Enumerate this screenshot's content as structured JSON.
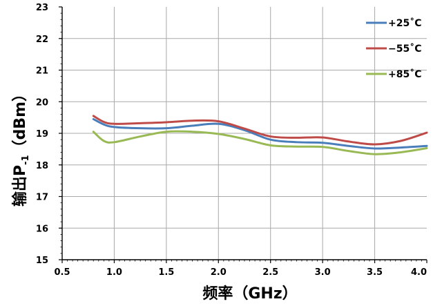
{
  "chart_data": {
    "type": "line",
    "xlabel": "频率（GHz）",
    "ylabel": {
      "main": "输出P",
      "subscript": "-1",
      "unit": "（dBm）"
    },
    "xlim": [
      0.5,
      4.0
    ],
    "ylim": [
      15,
      23
    ],
    "x_ticks": [
      "0.5",
      "1.0",
      "1.5",
      "2.0",
      "2.5",
      "3.0",
      "3.5",
      "4.0"
    ],
    "y_ticks": [
      "15",
      "16",
      "17",
      "18",
      "19",
      "20",
      "21",
      "22",
      "23"
    ],
    "grid": true,
    "legend_position": "top-right",
    "series": [
      {
        "name": "+25˚C",
        "color": "#4a7ebb",
        "x": [
          0.8,
          0.9,
          1.0,
          1.25,
          1.5,
          1.75,
          2.0,
          2.25,
          2.5,
          2.75,
          3.0,
          3.25,
          3.5,
          3.75,
          4.0
        ],
        "y": [
          19.45,
          19.28,
          19.2,
          19.16,
          19.16,
          19.24,
          19.3,
          19.1,
          18.8,
          18.72,
          18.7,
          18.6,
          18.52,
          18.55,
          18.6
        ]
      },
      {
        "name": "−55˚C",
        "color": "#be4b48",
        "x": [
          0.8,
          0.9,
          1.0,
          1.25,
          1.5,
          1.75,
          2.0,
          2.25,
          2.5,
          2.75,
          3.0,
          3.25,
          3.5,
          3.75,
          4.0
        ],
        "y": [
          19.55,
          19.36,
          19.3,
          19.32,
          19.35,
          19.4,
          19.38,
          19.15,
          18.9,
          18.86,
          18.87,
          18.74,
          18.65,
          18.76,
          19.02
        ]
      },
      {
        "name": "+85˚C",
        "color": "#98b954",
        "x": [
          0.8,
          0.9,
          1.0,
          1.25,
          1.5,
          1.75,
          2.0,
          2.25,
          2.5,
          2.75,
          3.0,
          3.25,
          3.5,
          3.75,
          4.0
        ],
        "y": [
          19.05,
          18.76,
          18.72,
          18.9,
          19.05,
          19.05,
          18.98,
          18.82,
          18.62,
          18.58,
          18.57,
          18.44,
          18.34,
          18.4,
          18.53
        ]
      }
    ]
  }
}
